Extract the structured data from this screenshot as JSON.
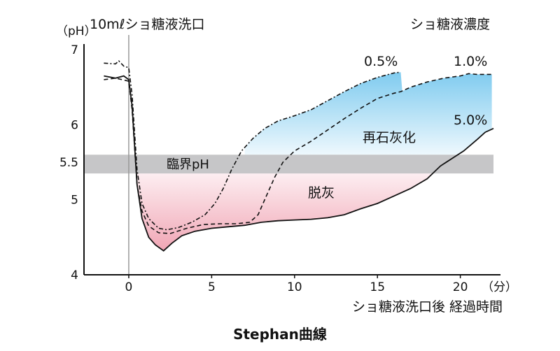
{
  "chart_data": {
    "type": "line",
    "title": "Stephan曲線",
    "xlabel": "ショ糖液洗口後 経過時間",
    "xunit": "（分）",
    "ylabel": "",
    "yunit": "（pH）",
    "xlim": [
      -2.7,
      22
    ],
    "ylim": [
      4,
      7
    ],
    "xticks": [
      0,
      5,
      10,
      15,
      20
    ],
    "yticks": [
      "4",
      "5",
      "5.5",
      "6",
      "7"
    ],
    "event_label": "10mℓショ糖液洗口",
    "event_x": 0,
    "legend_title": "ショ糖液濃度",
    "critical_ph_label": "臨界pH",
    "critical_ph_band": [
      5.35,
      5.6
    ],
    "region_labels": {
      "remineralization": "再石灰化",
      "demineralization": "脱灰"
    },
    "series": [
      {
        "name": "0.5%",
        "style": "dash-dot",
        "x": [
          -1.5,
          -0.8,
          -0.6,
          -0.3,
          0,
          0.2,
          0.5,
          0.8,
          1.2,
          1.8,
          2.3,
          3,
          3.8,
          4.6,
          5.2,
          5.7,
          6.2,
          6.8,
          7.5,
          8.2,
          9,
          10,
          11,
          12,
          13,
          14,
          15,
          15.5,
          16,
          16.4
        ],
        "y": [
          6.82,
          6.81,
          6.85,
          6.78,
          6.76,
          6.4,
          5.4,
          4.95,
          4.75,
          4.62,
          4.6,
          4.63,
          4.7,
          4.8,
          4.95,
          5.15,
          5.4,
          5.65,
          5.82,
          5.95,
          6.05,
          6.12,
          6.2,
          6.32,
          6.44,
          6.55,
          6.63,
          6.66,
          6.69,
          6.7
        ]
      },
      {
        "name": "1.0%",
        "style": "dashed",
        "x": [
          -1.5,
          -0.8,
          -0.4,
          0,
          0.2,
          0.5,
          0.8,
          1.2,
          1.8,
          2.5,
          3.5,
          4.5,
          5.5,
          6.5,
          7.3,
          7.8,
          8.3,
          8.8,
          9.3,
          10,
          11,
          12,
          13,
          14,
          15,
          16,
          16.4,
          17,
          18,
          19,
          20,
          20.5,
          21,
          22
        ],
        "y": [
          6.6,
          6.62,
          6.6,
          6.58,
          6.2,
          5.2,
          4.85,
          4.65,
          4.56,
          4.55,
          4.62,
          4.67,
          4.68,
          4.68,
          4.7,
          4.8,
          5.05,
          5.3,
          5.5,
          5.65,
          5.78,
          5.93,
          6.08,
          6.22,
          6.35,
          6.42,
          6.44,
          6.5,
          6.57,
          6.62,
          6.65,
          6.68,
          6.67,
          6.67
        ]
      },
      {
        "name": "5.0%",
        "style": "solid",
        "x": [
          -1.5,
          -0.8,
          -0.3,
          0,
          0.2,
          0.5,
          0.8,
          1.2,
          1.6,
          2.1,
          2.6,
          3.2,
          4,
          5,
          6,
          7,
          8,
          9,
          10,
          11,
          12,
          13,
          14,
          15,
          16,
          17,
          18,
          18.8,
          19.5,
          20.2,
          21,
          21.5,
          22
        ],
        "y": [
          6.65,
          6.62,
          6.65,
          6.6,
          6.25,
          5.2,
          4.75,
          4.5,
          4.4,
          4.32,
          4.42,
          4.52,
          4.58,
          4.62,
          4.64,
          4.66,
          4.7,
          4.72,
          4.73,
          4.74,
          4.76,
          4.8,
          4.88,
          4.95,
          5.05,
          5.15,
          5.28,
          5.45,
          5.55,
          5.65,
          5.8,
          5.9,
          5.95
        ]
      }
    ]
  }
}
